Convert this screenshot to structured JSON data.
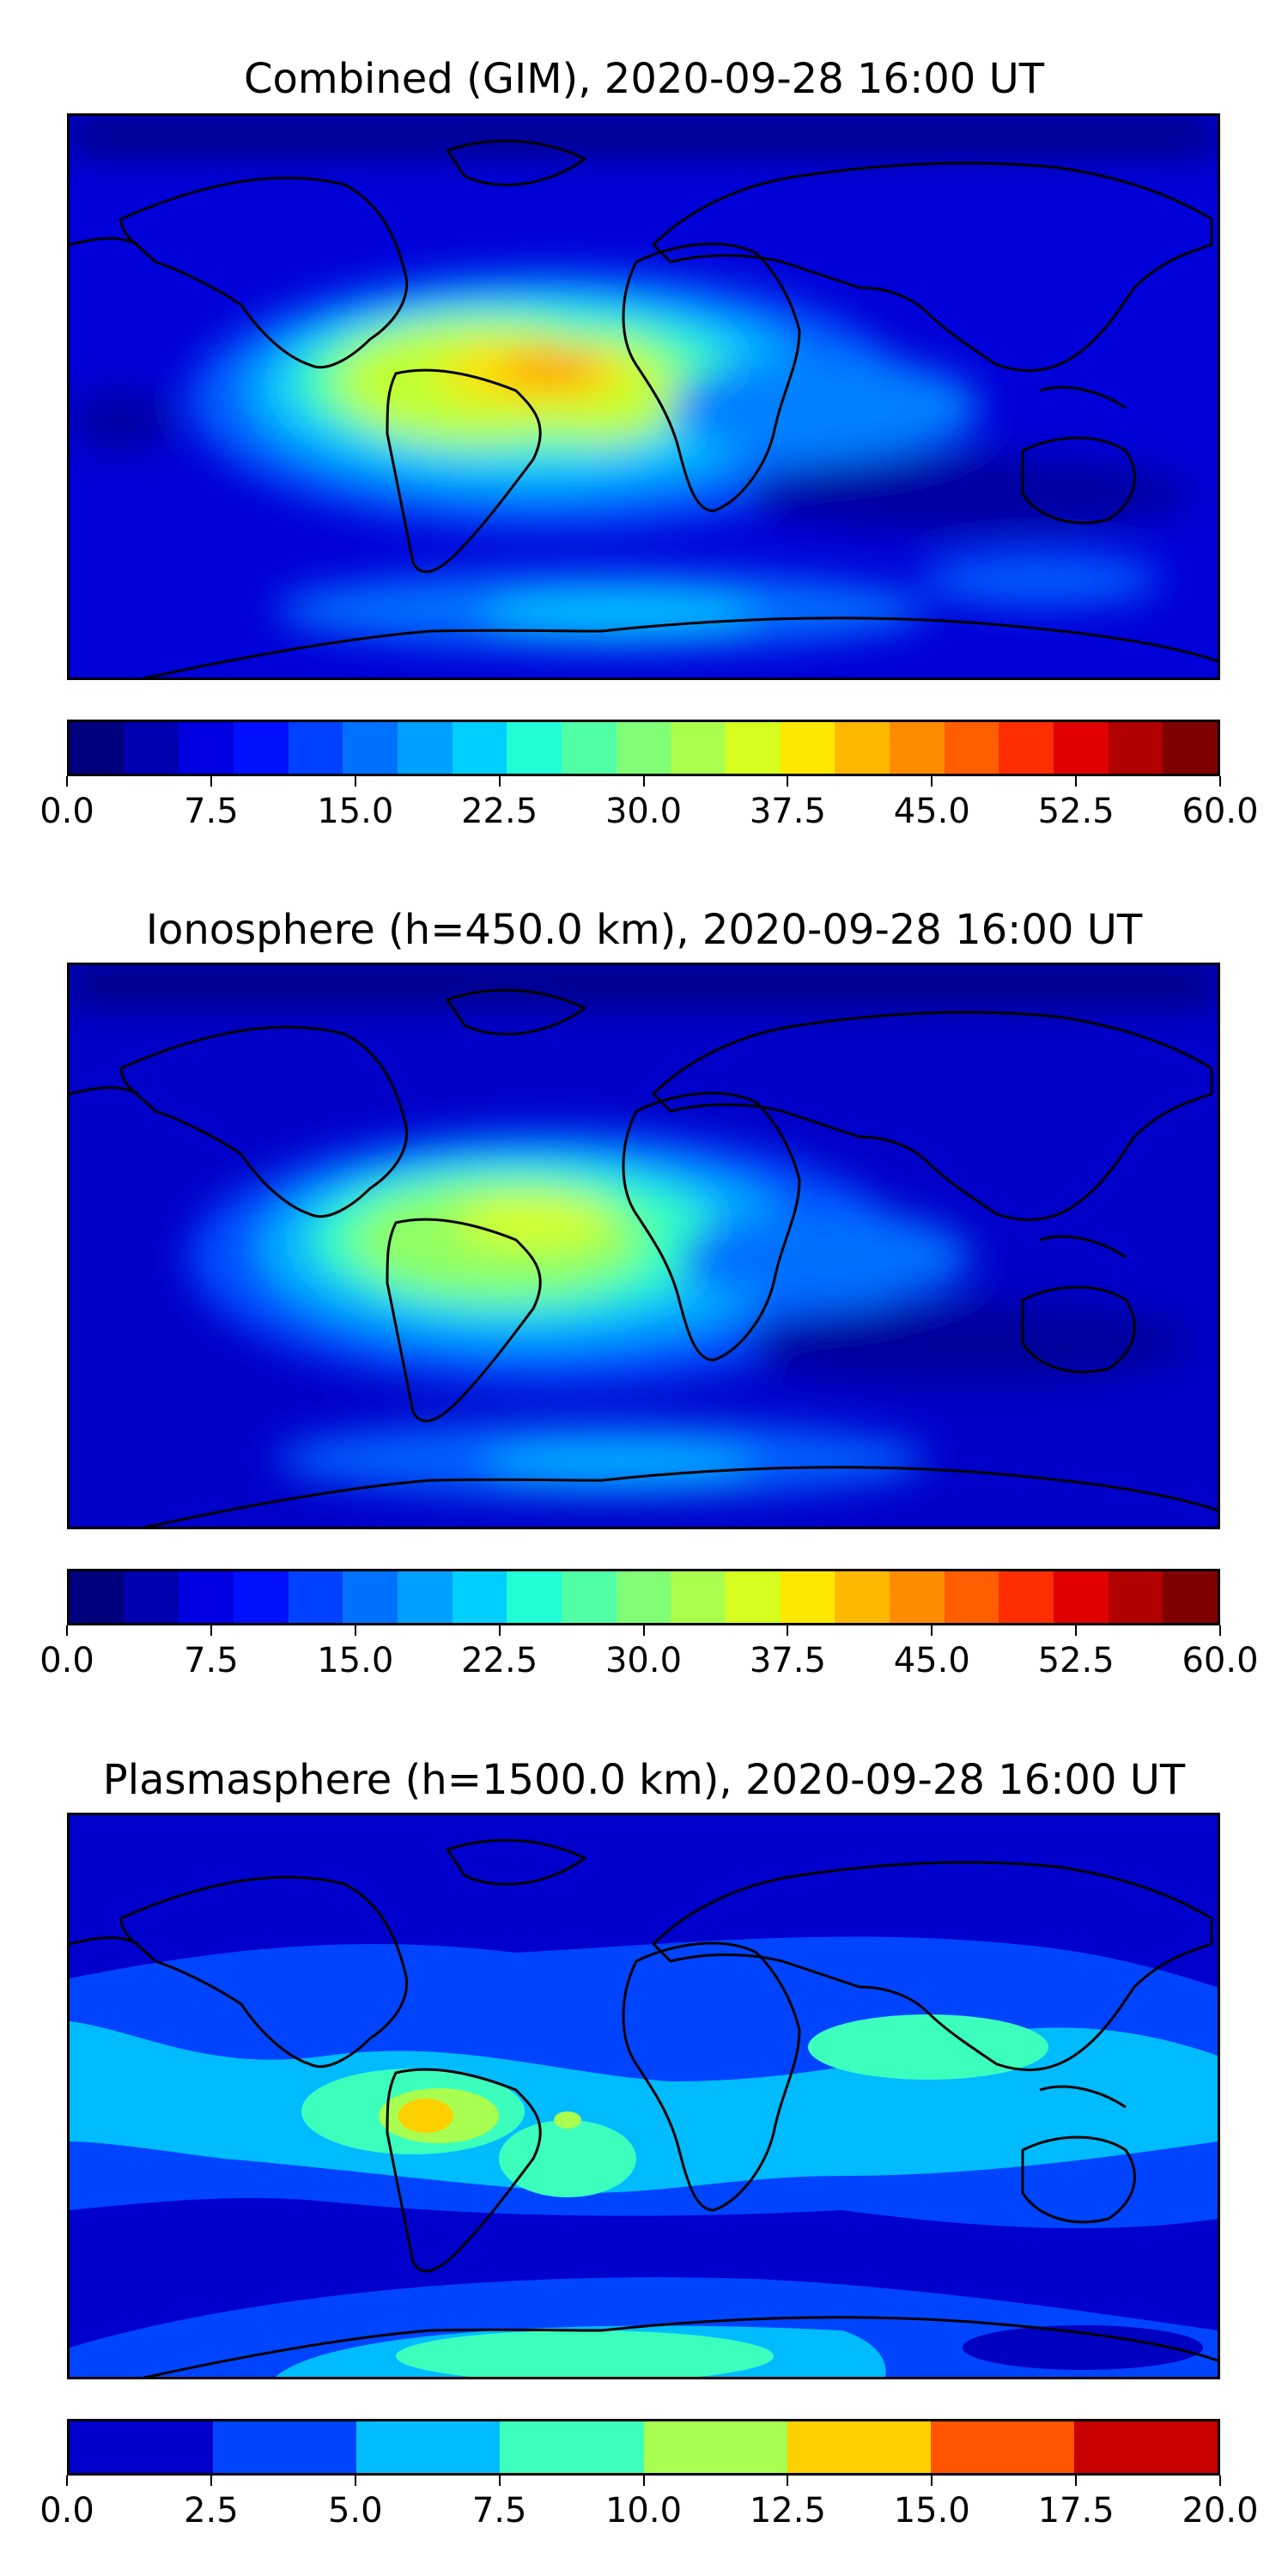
{
  "panels": [
    {
      "title": "Combined (GIM), 2020-09-28 16:00 UT",
      "colorbar": {
        "colors": [
          "#00007f",
          "#0000b0",
          "#0000e0",
          "#0010ff",
          "#0040ff",
          "#0070ff",
          "#00a0ff",
          "#00d0ff",
          "#20ffd6",
          "#50ffa6",
          "#80ff76",
          "#aaff4c",
          "#d6ff20",
          "#ffe800",
          "#ffb800",
          "#ff8c00",
          "#ff5e00",
          "#ff2e00",
          "#e00000",
          "#b00000",
          "#800000"
        ],
        "tick_labels": [
          "0.0",
          "7.5",
          "15.0",
          "22.5",
          "30.0",
          "37.5",
          "45.0",
          "52.5",
          "60.0"
        ]
      }
    },
    {
      "title": "Ionosphere  (h=450.0 km), 2020-09-28 16:00 UT",
      "colorbar": {
        "colors": [
          "#00007f",
          "#0000b0",
          "#0000e0",
          "#0010ff",
          "#0040ff",
          "#0070ff",
          "#00a0ff",
          "#00d0ff",
          "#20ffd6",
          "#50ffa6",
          "#80ff76",
          "#aaff4c",
          "#d6ff20",
          "#ffe800",
          "#ffb800",
          "#ff8c00",
          "#ff5e00",
          "#ff2e00",
          "#e00000",
          "#b00000",
          "#800000"
        ],
        "tick_labels": [
          "0.0",
          "7.5",
          "15.0",
          "22.5",
          "30.0",
          "37.5",
          "45.0",
          "52.5",
          "60.0"
        ]
      }
    },
    {
      "title": "Plasmasphere (h=1500.0 km), 2020-09-28 16:00 UT",
      "colorbar": {
        "colors": [
          "#0000cd",
          "#0044ff",
          "#00bcff",
          "#3cffbe",
          "#a8ff50",
          "#ffd000",
          "#ff5400",
          "#c80000"
        ],
        "tick_labels": [
          "0.0",
          "2.5",
          "5.0",
          "7.5",
          "10.0",
          "12.5",
          "15.0",
          "17.5",
          "20.0"
        ]
      }
    }
  ]
}
